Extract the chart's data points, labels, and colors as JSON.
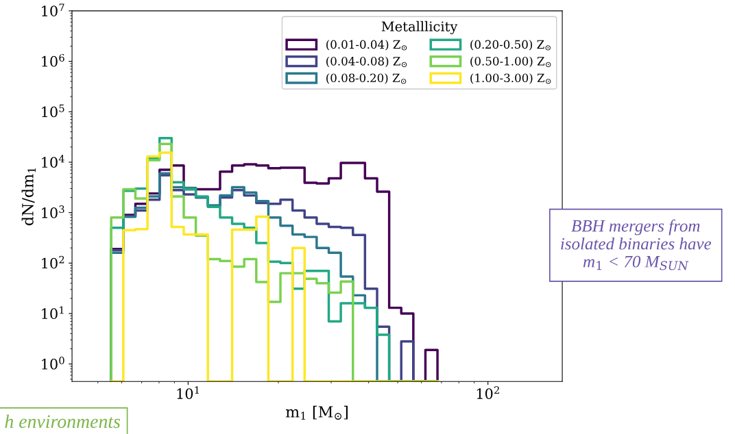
{
  "chart_data": {
    "type": "histogram",
    "xlabel": "m$_{1}$ [M$_{⊙}$]",
    "ylabel": "dN/dm$_{1}$",
    "legend_title": "Metalllicity",
    "legend": "top right",
    "log": "xy",
    "grid": false,
    "bins": [
      5.54,
      6.08,
      6.67,
      7.32,
      8.03,
      8.81,
      9.67,
      10.61,
      11.64,
      12.78,
      14.02,
      15.38,
      16.88,
      18.52,
      20.32,
      22.3,
      24.46,
      26.84,
      29.45,
      32.31,
      35.46,
      38.9,
      42.69,
      46.84,
      51.39,
      56.39,
      61.87,
      67.88
    ],
    "xlim": [
      4.1,
      177
    ],
    "xticks": [
      {
        "value": 10,
        "label": "10$^{1}$"
      },
      {
        "value": 100,
        "label": "10$^{2}$"
      }
    ],
    "ylim": [
      0.45,
      10000000
    ],
    "yticks": [
      {
        "value": 1,
        "label": "10$^{0}$"
      },
      {
        "value": 10,
        "label": "10$^{1}$"
      },
      {
        "value": 100,
        "label": "10$^{2}$"
      },
      {
        "value": 1000,
        "label": "10$^{3}$"
      },
      {
        "value": 10000,
        "label": "10$^{4}$"
      },
      {
        "value": 100000,
        "label": "10$^{5}$"
      },
      {
        "value": 1000000,
        "label": "10$^{6}$"
      },
      {
        "value": 10000000,
        "label": "10$^{7}$"
      }
    ],
    "series": [
      {
        "name": "(0.01-0.04) Z$_{⊙}$",
        "color": "#440154",
        "values": [
          190,
          900,
          1500,
          2400,
          7100,
          8600,
          2900,
          2900,
          2900,
          6500,
          8600,
          9100,
          8600,
          7600,
          7800,
          7800,
          3900,
          3800,
          4800,
          9700,
          9700,
          4800,
          2600,
          13,
          10,
          null,
          1.9
        ]
      },
      {
        "name": "(0.04-0.08) Z$_{⊙}$",
        "color": "#414487",
        "values": [
          180,
          830,
          1100,
          1800,
          5500,
          2800,
          2300,
          2000,
          1340,
          2000,
          2800,
          2200,
          1550,
          1500,
          1800,
          1100,
          800,
          600,
          520,
          500,
          360,
          31,
          5.5,
          null,
          2.8,
          null,
          null
        ]
      },
      {
        "name": "(0.08-0.20) Z$_{⊙}$",
        "color": "#2a788e",
        "values": [
          160,
          830,
          1250,
          2100,
          6000,
          3200,
          3100,
          2000,
          1400,
          2200,
          3200,
          2500,
          1700,
          800,
          550,
          370,
          330,
          200,
          160,
          54,
          23,
          13,
          null,
          null,
          null,
          null,
          null
        ]
      },
      {
        "name": "(0.20-0.50) Z$_{⊙}$",
        "color": "#22a884",
        "values": [
          500,
          2700,
          3000,
          12000,
          30000,
          4000,
          2900,
          2100,
          1300,
          800,
          600,
          500,
          250,
          107,
          100,
          31,
          70,
          70,
          7,
          16,
          16,
          13,
          3.8,
          null,
          null,
          null,
          null
        ]
      },
      {
        "name": "(0.50-1.00) Z$_{⊙}$",
        "color": "#7ad151",
        "values": [
          800,
          2900,
          1900,
          11000,
          23000,
          2100,
          800,
          350,
          120,
          110,
          85,
          120,
          42,
          17,
          63,
          63,
          49,
          40,
          26,
          43,
          null,
          null,
          null,
          null,
          null,
          null,
          null
        ]
      },
      {
        "name": "(1.00-3.00) Z$_{⊙}$",
        "color": "#fde725",
        "values": [
          null,
          450,
          470,
          13000,
          15500,
          520,
          370,
          370,
          null,
          null,
          460,
          460,
          830,
          null,
          null,
          200,
          null,
          null,
          null,
          null,
          null,
          null,
          null,
          null,
          null,
          null,
          null
        ]
      }
    ],
    "annotations": [
      "BBH mergers from isolated binaries have m$_{1}$ < 70 M$_{SUN}$",
      "h environments"
    ]
  }
}
